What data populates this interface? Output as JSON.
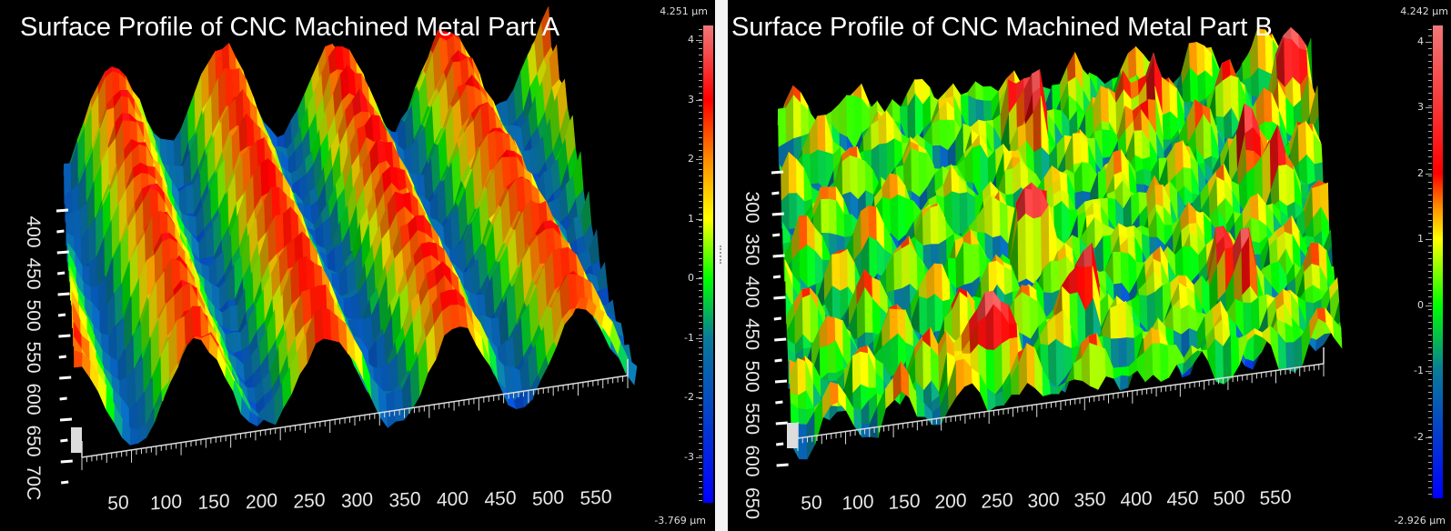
{
  "chart_data": [
    {
      "type": "heatmap",
      "render": "3d-surface",
      "title": "Surface Profile of CNC Machined Metal Part A",
      "x_ticks": [
        "50",
        "100",
        "150",
        "200",
        "250",
        "300",
        "350",
        "400",
        "450",
        "500",
        "550"
      ],
      "y_ticks": [
        "400",
        "450",
        "500",
        "550",
        "600",
        "650",
        "70C"
      ],
      "colorbar": {
        "max_label": "4.251 µm",
        "min_label": "-3.769 µm",
        "zlim": [
          -3.769,
          4.251
        ],
        "ticks": [
          "4",
          "3",
          "2",
          "1",
          "0",
          "-1",
          "-2",
          "-3"
        ],
        "colors": {
          "min": "#0000ff",
          "-1": "#0a7a9a",
          "0": "#00ff00",
          "1": "#ffff00",
          "2": "#ff8c00",
          "3": "#ff0000",
          "max": "#f07878"
        }
      },
      "pattern": "diagonal machining ridges"
    },
    {
      "type": "heatmap",
      "render": "3d-surface",
      "title": "Surface Profile of CNC Machined Metal Part B",
      "x_ticks": [
        "50",
        "100",
        "150",
        "200",
        "250",
        "300",
        "350",
        "400",
        "450",
        "500",
        "550"
      ],
      "y_ticks": [
        "300",
        "350",
        "400",
        "450",
        "500",
        "550",
        "600",
        "650"
      ],
      "colorbar": {
        "max_label": "4.242 µm",
        "min_label": "-2.926 µm",
        "zlim": [
          -2.926,
          4.242
        ],
        "ticks": [
          "4",
          "3",
          "2",
          "1",
          "0",
          "-1",
          "-2"
        ],
        "colors": {
          "min": "#0000ff",
          "-1": "#0a7a9a",
          "0": "#00ff00",
          "1": "#ffff00",
          "1.5": "#ff8c00",
          "2": "#ff0000",
          "max": "#f07878"
        }
      },
      "pattern": "cellular peaks and pits"
    }
  ]
}
